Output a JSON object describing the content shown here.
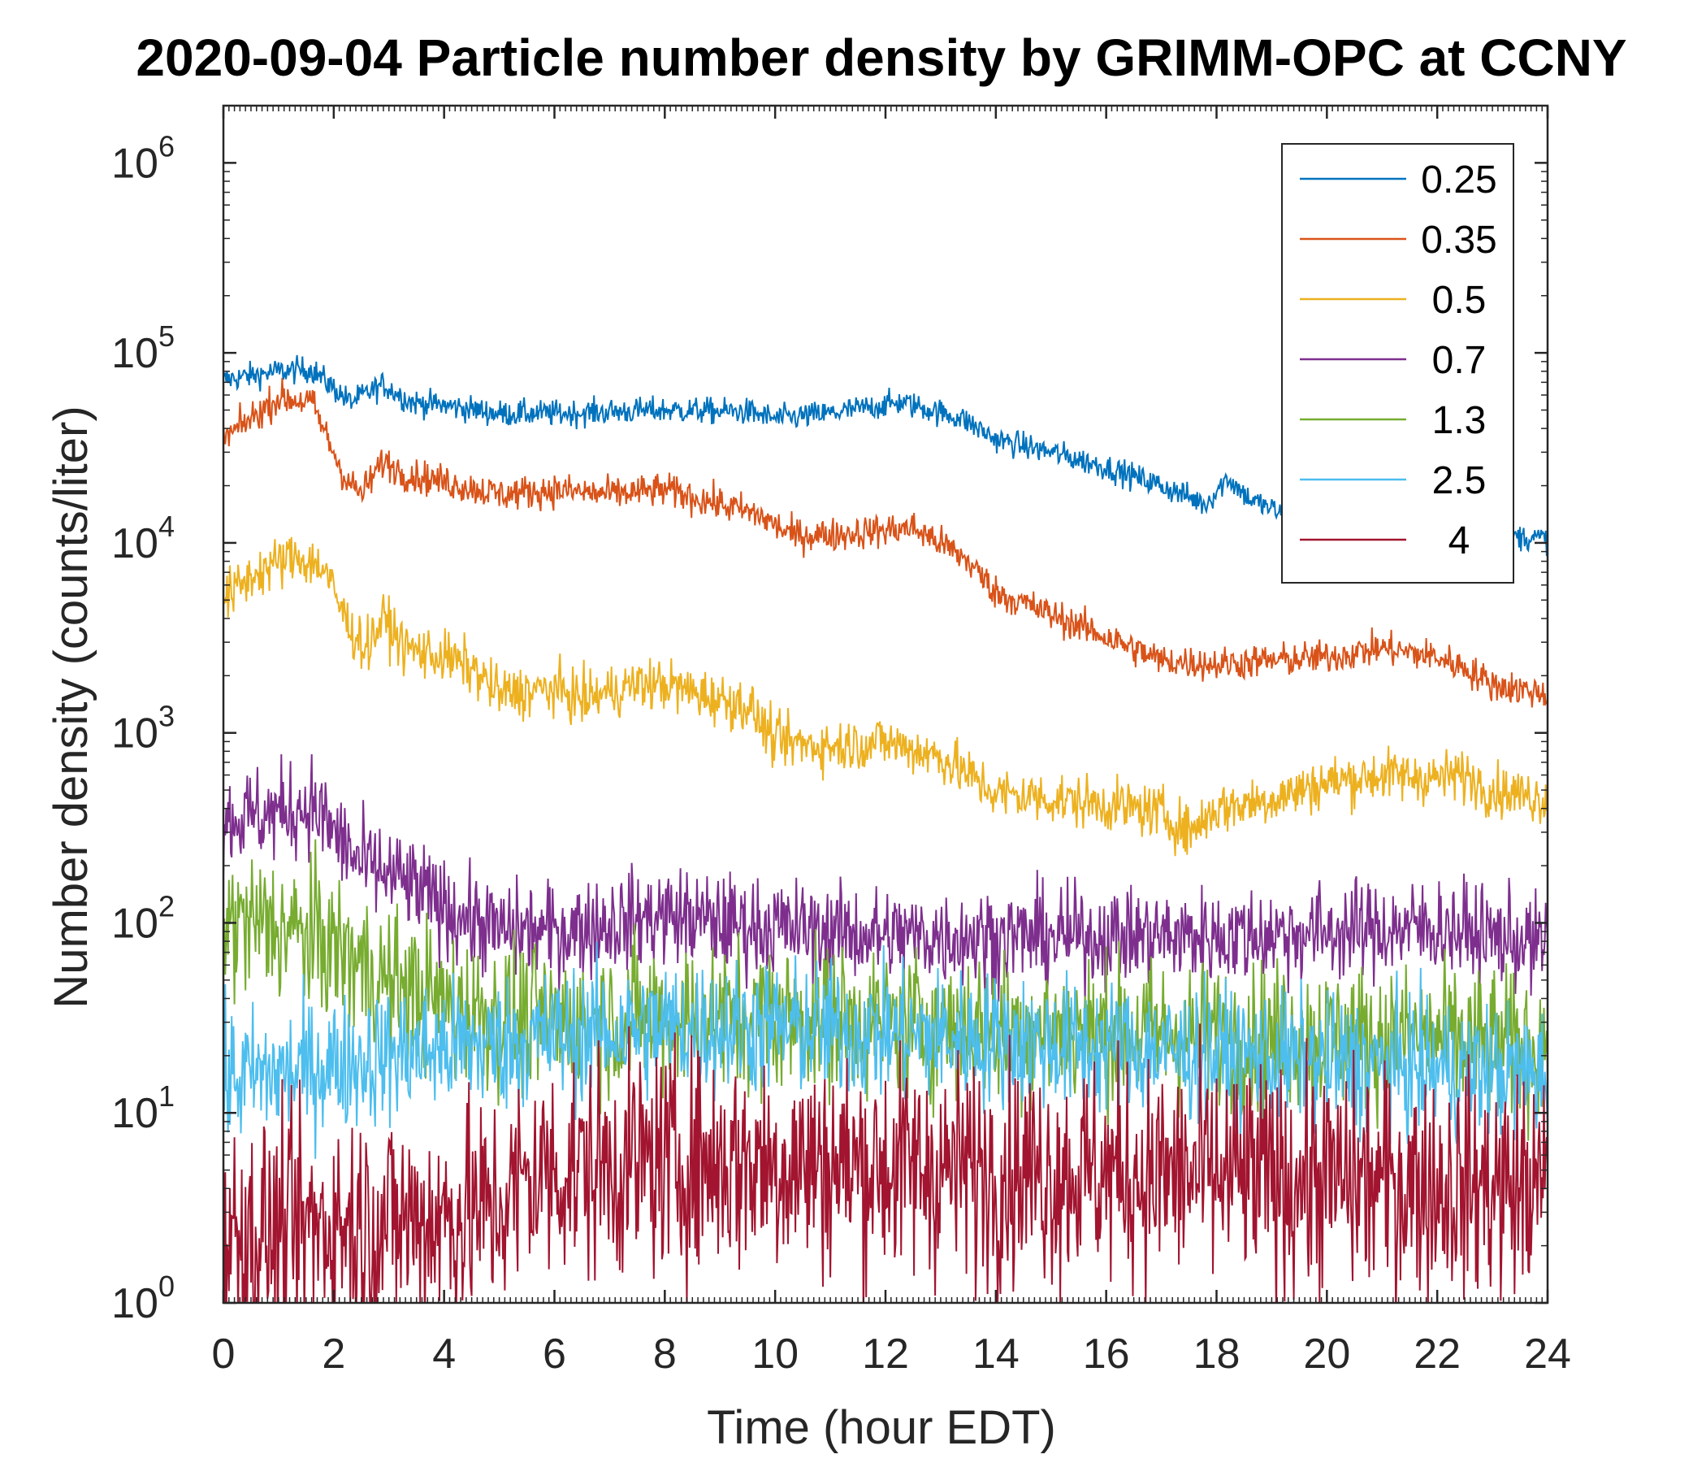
{
  "chart_data": {
    "type": "line",
    "title": "2020-09-04 Particle number density by GRIMM-OPC at CCNY",
    "xlabel": "Time (hour EDT)",
    "ylabel": "Number density (counts/liter)",
    "xlim": [
      0,
      24
    ],
    "ylim": [
      1,
      2000000
    ],
    "yscale": "log",
    "xticks": [
      0,
      2,
      4,
      6,
      8,
      10,
      12,
      14,
      16,
      18,
      20,
      22,
      24
    ],
    "xtick_labels": [
      "0",
      "2",
      "4",
      "6",
      "8",
      "10",
      "12",
      "14",
      "16",
      "18",
      "20",
      "22",
      "24"
    ],
    "yticks": [
      {
        "value": 1,
        "base": "10",
        "exp": "0"
      },
      {
        "value": 10,
        "base": "10",
        "exp": "1"
      },
      {
        "value": 100,
        "base": "10",
        "exp": "2"
      },
      {
        "value": 1000,
        "base": "10",
        "exp": "3"
      },
      {
        "value": 10000,
        "base": "10",
        "exp": "4"
      },
      {
        "value": 100000,
        "base": "10",
        "exp": "5"
      },
      {
        "value": 1000000,
        "base": "10",
        "exp": "6"
      }
    ],
    "grid": false,
    "legend_position": "top-right",
    "series": [
      {
        "name": "0.25",
        "color": "#0072BD",
        "noise": 0.035,
        "x": [
          0,
          1,
          1.6,
          2.3,
          2.9,
          3.4,
          4,
          5,
          6,
          8,
          9.5,
          10,
          11,
          12.3,
          13.4,
          14,
          15,
          16,
          17,
          17.8,
          18.2,
          18.6,
          19.5,
          20,
          21,
          22,
          23,
          24
        ],
        "y": [
          72000,
          80000,
          82000,
          55000,
          68000,
          55000,
          53000,
          48000,
          48000,
          50000,
          49000,
          45000,
          48000,
          55000,
          45000,
          35000,
          30000,
          25000,
          20000,
          16000,
          22000,
          17000,
          13000,
          13000,
          12000,
          11500,
          11000,
          10500
        ]
      },
      {
        "name": "0.35",
        "color": "#D95319",
        "noise": 0.045,
        "x": [
          0,
          1,
          1.6,
          2.2,
          2.5,
          2.9,
          3.3,
          4,
          5,
          6,
          7,
          8,
          9,
          9.7,
          10.3,
          11,
          12.5,
          13,
          13.5,
          14,
          15,
          16,
          17,
          18,
          19,
          20,
          21,
          22,
          22.5,
          23,
          24
        ],
        "y": [
          35000,
          58000,
          55000,
          22000,
          18000,
          27000,
          23000,
          21000,
          18000,
          19000,
          18000,
          19000,
          16000,
          14000,
          11000,
          11000,
          12000,
          10000,
          8000,
          5500,
          4200,
          3200,
          2400,
          2300,
          2400,
          2500,
          2800,
          2500,
          2200,
          1800,
          1600
        ]
      },
      {
        "name": "0.5",
        "color": "#EDB120",
        "noise": 0.07,
        "x": [
          0,
          0.6,
          1.3,
          1.8,
          2.3,
          2.6,
          2.9,
          3.3,
          4,
          4.5,
          5,
          6,
          6.5,
          7.5,
          8,
          9,
          9.5,
          10,
          11,
          12,
          13,
          13.5,
          14,
          15,
          16,
          17,
          17.5,
          18,
          19,
          20,
          21,
          22,
          22.5,
          23,
          24
        ],
        "y": [
          5000,
          7000,
          8500,
          7500,
          3500,
          2800,
          4000,
          2800,
          2500,
          2200,
          1600,
          1700,
          1500,
          1800,
          1800,
          1500,
          1400,
          900,
          850,
          900,
          750,
          600,
          480,
          450,
          420,
          380,
          300,
          400,
          450,
          550,
          600,
          580,
          600,
          500,
          450
        ]
      },
      {
        "name": "0.7",
        "color": "#7E2F8E",
        "noise": 0.13,
        "x": [
          0,
          1,
          1.6,
          2,
          2.5,
          3,
          3.5,
          4,
          5,
          6,
          7,
          8,
          9,
          10,
          12,
          14,
          16,
          18,
          20,
          22,
          23,
          24
        ],
        "y": [
          350,
          380,
          420,
          300,
          200,
          180,
          150,
          120,
          90,
          90,
          100,
          110,
          100,
          95,
          85,
          85,
          85,
          85,
          90,
          95,
          85,
          75
        ]
      },
      {
        "name": "1.3",
        "color": "#77AC30",
        "noise": 0.2,
        "x": [
          0,
          1,
          2,
          2.5,
          3,
          4,
          5,
          6,
          8,
          10,
          12,
          14,
          16,
          18,
          20,
          22,
          24
        ],
        "y": [
          100,
          95,
          75,
          60,
          48,
          38,
          32,
          30,
          32,
          32,
          30,
          28,
          27,
          25,
          25,
          24,
          22
        ]
      },
      {
        "name": "2.5",
        "color": "#4DBEEE",
        "noise": 0.18,
        "x": [
          0,
          1,
          2,
          3,
          4,
          5,
          6,
          8,
          10,
          12,
          14,
          16,
          18,
          20,
          22,
          24
        ],
        "y": [
          15,
          16,
          18,
          20,
          22,
          23,
          25,
          28,
          28,
          26,
          24,
          22,
          20,
          18,
          17,
          16
        ]
      },
      {
        "name": "4",
        "color": "#A2142F",
        "noise": 0.3,
        "x": [
          0,
          2,
          4,
          5,
          5.5,
          6,
          8,
          10,
          12,
          14,
          16,
          18,
          20,
          22,
          24
        ],
        "y": [
          2.2,
          2.6,
          2.8,
          3.2,
          4.5,
          5,
          5.5,
          5.5,
          5.2,
          5,
          4.8,
          4.6,
          4.4,
          4.2,
          4
        ]
      }
    ]
  }
}
